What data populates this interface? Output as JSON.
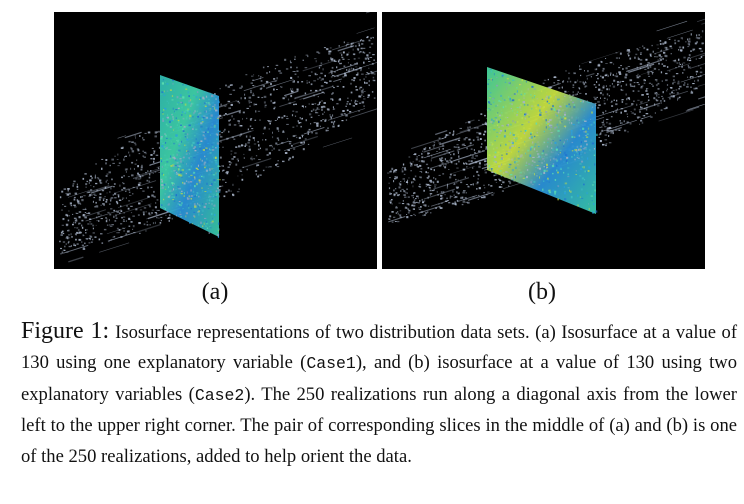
{
  "panels": {
    "a": {
      "label": "(a)"
    },
    "b": {
      "label": "(b)"
    }
  },
  "caption": {
    "figure_label": "Figure 1:",
    "part1": "Isosurface representations of two distribution data sets. (a) Isosurface at a value of 130 using one explanatory variable (",
    "code1": "Case1",
    "part2": "), and (b) isosurface at a value of 130 using two explanatory variables (",
    "code2": "Case2",
    "part3": "). The 250 realizations run along a diagonal axis from the lower left to the upper right corner. The pair of corresponding slices in the middle of (a) and (b) is one of the 250 realizations, added to help orient the data."
  },
  "colors": {
    "background": "#000000",
    "isosurface": "#a8b4c8",
    "slice_primary": "#3cc8b4",
    "slice_secondary": "#2a78d0",
    "slice_highlight": "#c8e040"
  }
}
